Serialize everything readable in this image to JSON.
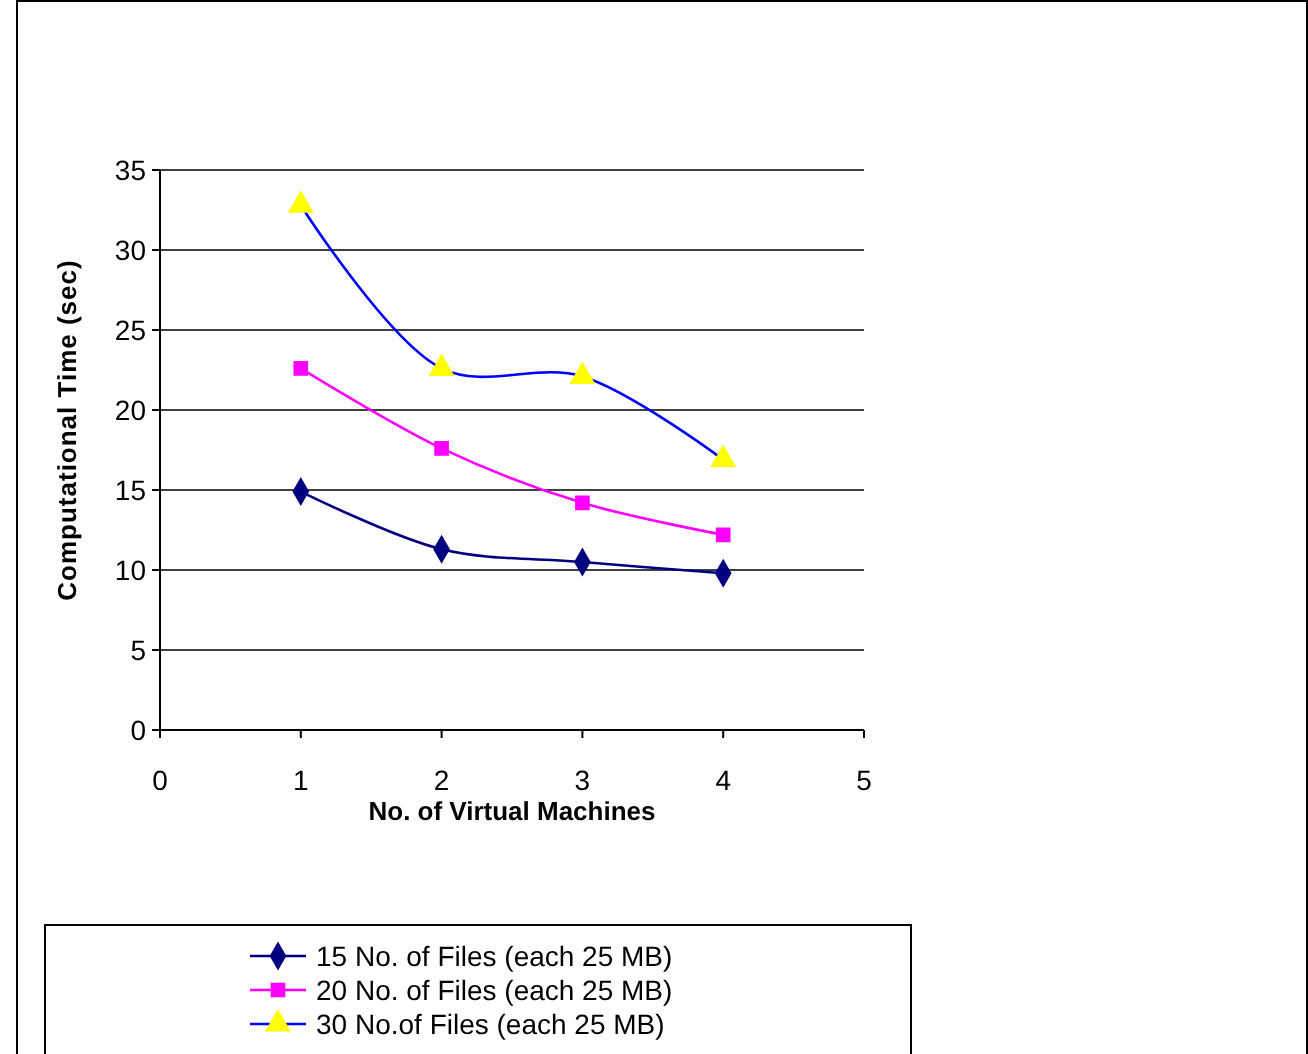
{
  "chart_data": {
    "type": "line",
    "xlabel": "No. of Virtual Machines",
    "ylabel": "Computational Time (sec)",
    "x": [
      1,
      2,
      3,
      4
    ],
    "xlim": [
      0,
      5
    ],
    "xticks": [
      0,
      1,
      2,
      3,
      4,
      5
    ],
    "ylim": [
      0,
      35
    ],
    "yticks": [
      0,
      5,
      10,
      15,
      20,
      25,
      30,
      35
    ],
    "grid": "y",
    "legend": "bottom",
    "series": [
      {
        "name": "15 No. of Files (each 25 MB)",
        "color": "#000080",
        "marker": "diamond",
        "values": [
          14.9,
          11.3,
          10.5,
          9.8
        ]
      },
      {
        "name": "20 No. of Files (each 25 MB)",
        "color": "#ff00ff",
        "marker": "square",
        "values": [
          22.6,
          17.6,
          14.2,
          12.2
        ]
      },
      {
        "name": "30 No.of Files (each 25 MB)",
        "color": "#0000ff",
        "colors": [
          "#ffff00",
          "#ffff00",
          "#ffff00",
          "#ffff00"
        ],
        "marker": "triangle",
        "values": [
          32.8,
          22.6,
          22.1,
          16.9
        ]
      }
    ]
  }
}
